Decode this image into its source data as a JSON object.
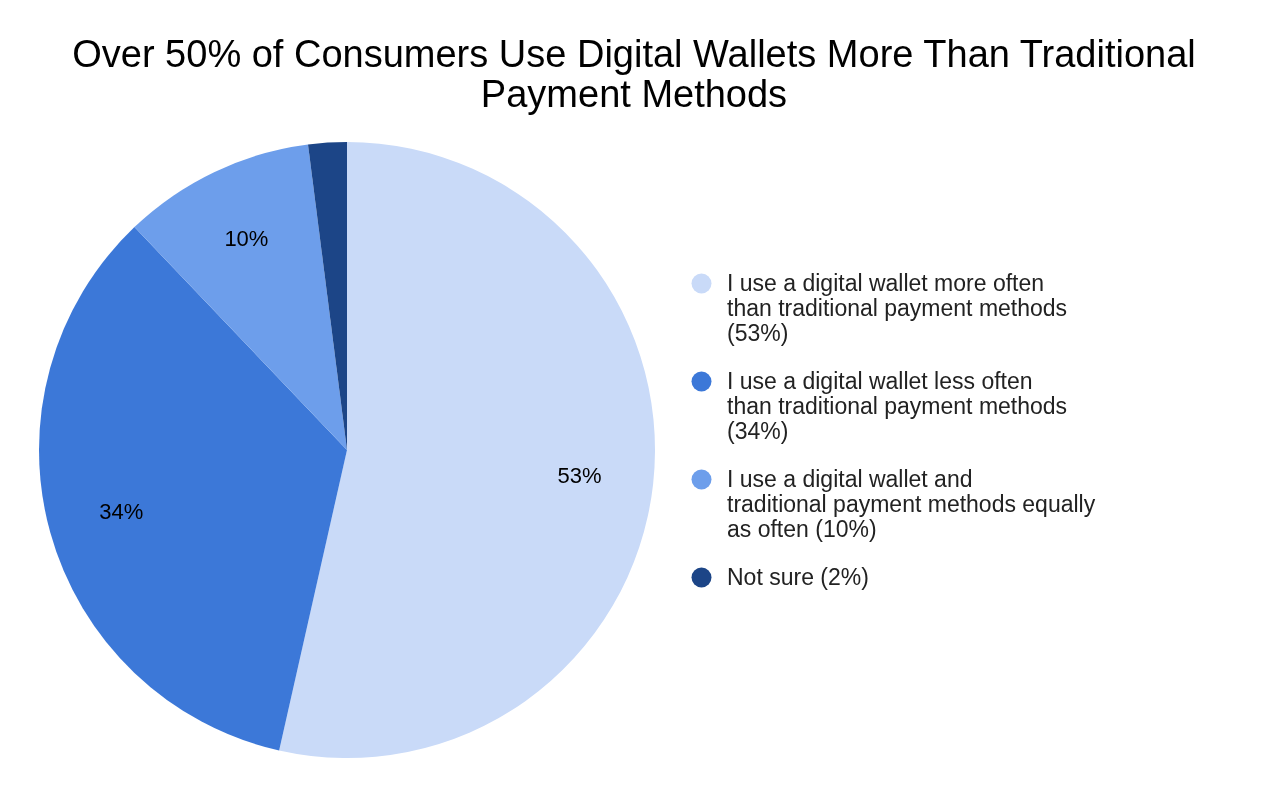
{
  "chart_data": {
    "type": "pie",
    "title": "Over 50% of Consumers Use Digital Wallets More Than Traditional Payment Methods",
    "categories": [
      "I use a digital wallet more often than traditional payment methods (53%)",
      "I use a digital wallet less often than traditional payment methods (34%)",
      "I use a digital wallet and traditional payment methods equally as often (10%)",
      "Not sure (2%)"
    ],
    "values": [
      53,
      34,
      10,
      2
    ],
    "colors": [
      "#c9daf8",
      "#3c78d8",
      "#6d9eeb",
      "#1c4587"
    ],
    "value_labels": [
      "53%",
      "34%",
      "10%",
      null
    ],
    "legend": "right"
  }
}
